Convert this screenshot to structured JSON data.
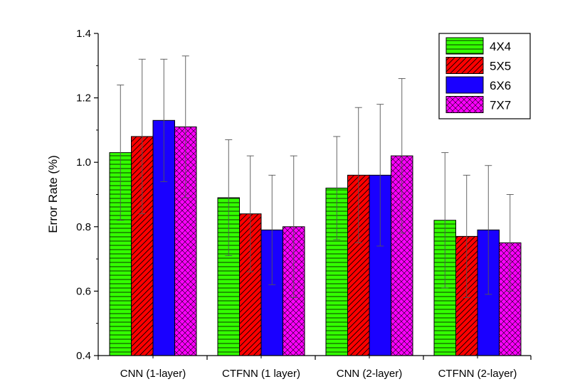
{
  "chart_data": {
    "type": "bar",
    "title": "",
    "xlabel": "",
    "ylabel": "Error Rate (%)",
    "ylim": [
      0.4,
      1.4
    ],
    "yticks": [
      "0.4",
      "0.6",
      "0.8",
      "1.0",
      "1.2",
      "1.4"
    ],
    "categories": [
      "CNN (1-layer)",
      "CTFNN (1 layer)",
      "CNN (2-layer)",
      "CTFNN (2-layer)"
    ],
    "series": [
      {
        "name": "4X4",
        "color": "#33ff00",
        "pattern": "horizontal-lines",
        "values": [
          1.03,
          0.89,
          0.92,
          0.82
        ],
        "err_low": [
          0.82,
          0.71,
          0.76,
          0.61
        ],
        "err_high": [
          1.24,
          1.07,
          1.08,
          1.03
        ]
      },
      {
        "name": "5X5",
        "color": "#ff0000",
        "pattern": "diagonal-lines",
        "values": [
          1.08,
          0.84,
          0.96,
          0.77
        ],
        "err_low": [
          0.84,
          0.66,
          0.75,
          0.58
        ],
        "err_high": [
          1.32,
          1.02,
          1.17,
          0.96
        ]
      },
      {
        "name": "6X6",
        "color": "#1a00ff",
        "pattern": "solid",
        "values": [
          1.13,
          0.79,
          0.96,
          0.79
        ],
        "err_low": [
          0.94,
          0.62,
          0.74,
          0.59
        ],
        "err_high": [
          1.32,
          0.96,
          1.18,
          0.99
        ]
      },
      {
        "name": "7X7",
        "color": "#ff00ff",
        "pattern": "crosshatch",
        "values": [
          1.11,
          0.8,
          1.02,
          0.75
        ],
        "err_low": [
          0.89,
          0.58,
          0.78,
          0.6
        ],
        "err_high": [
          1.33,
          1.02,
          1.26,
          0.9
        ]
      }
    ],
    "legend_position": "top-right",
    "grid": false
  }
}
